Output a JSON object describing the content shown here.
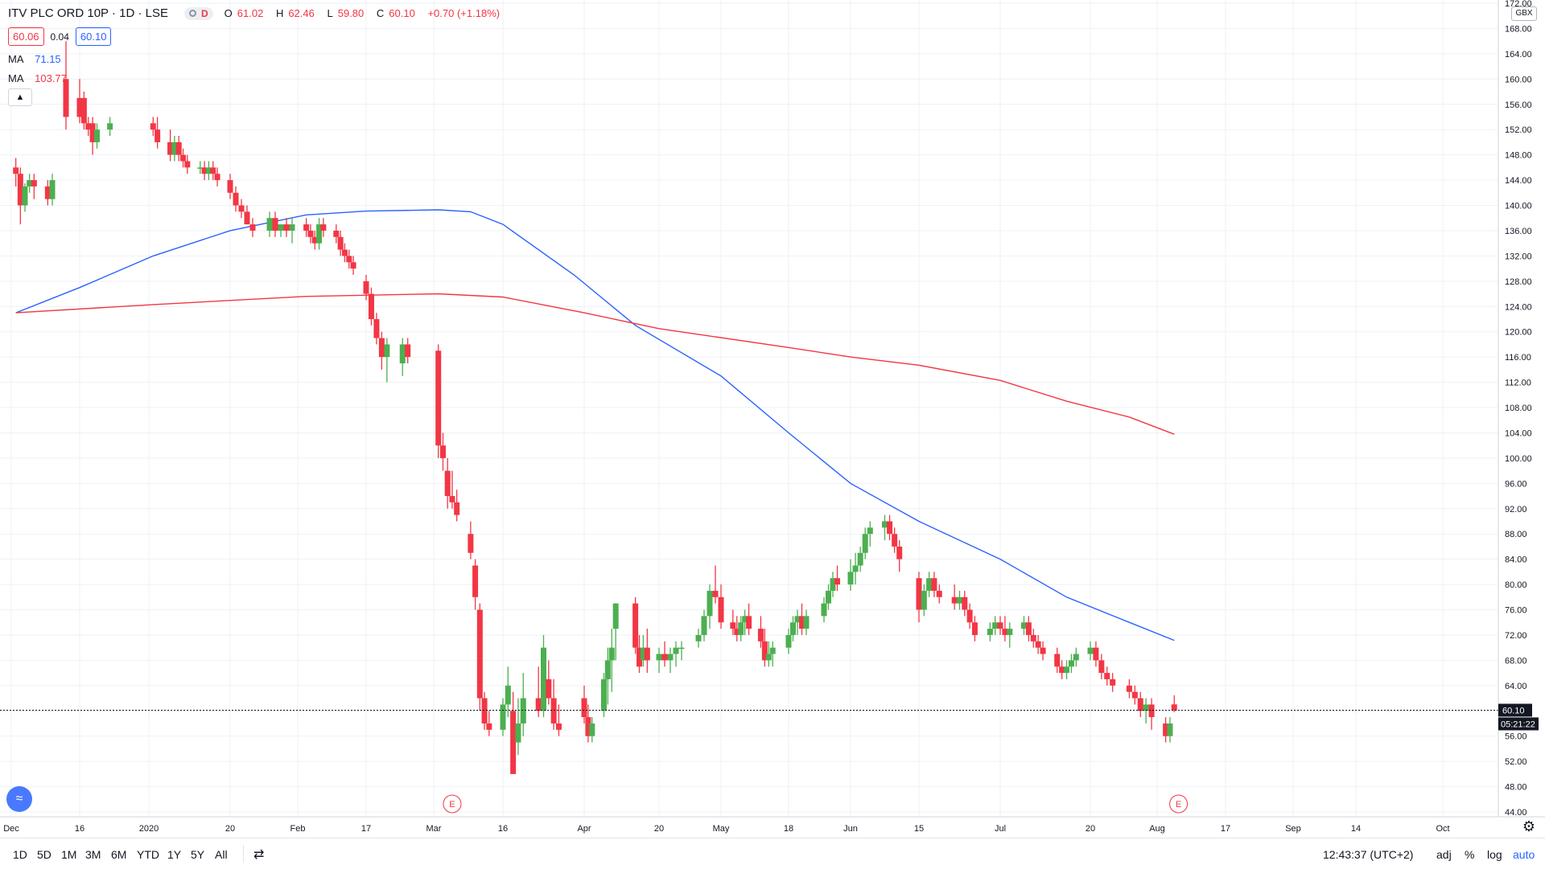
{
  "header": {
    "symbol": "ITV PLC ORD 10P · 1D · LSE",
    "badge": "D",
    "open_label": "O",
    "open": "61.02",
    "high_label": "H",
    "high": "62.46",
    "low_label": "L",
    "low": "59.80",
    "close_label": "C",
    "close": "60.10",
    "change": "+0.70 (+1.18%)"
  },
  "quote": {
    "bid": "60.06",
    "spread": "0.04",
    "ask": "60.10"
  },
  "indicators": [
    {
      "label": "MA",
      "value": "71.15",
      "color": "#2962ff"
    },
    {
      "label": "MA",
      "value": "103.77",
      "color": "#f23645"
    }
  ],
  "collapse_icon": "chevron-up-icon",
  "earnings_marker": "E",
  "currency": "GBX",
  "price_axis_ticks": [
    "44.00",
    "48.00",
    "52.00",
    "56.00",
    "60.00",
    "64.00",
    "68.00",
    "72.00",
    "76.00",
    "80.00",
    "84.00",
    "88.00",
    "92.00",
    "96.00",
    "100.00",
    "104.00",
    "108.00",
    "112.00",
    "116.00",
    "120.00",
    "124.00",
    "128.00",
    "132.00",
    "136.00",
    "140.00",
    "144.00",
    "148.00",
    "152.00",
    "156.00",
    "160.00",
    "164.00",
    "168.00",
    "172.00"
  ],
  "last_price_label": "60.10",
  "countdown_label": "05:21:22",
  "time_axis_labels": [
    "Dec",
    "16",
    "2020",
    "20",
    "Feb",
    "17",
    "Mar",
    "16",
    "Apr",
    "20",
    "May",
    "18",
    "Jun",
    "15",
    "Jul",
    "20",
    "Aug",
    "17",
    "Sep",
    "14",
    "Oct"
  ],
  "bottom_bar": {
    "timeframes": [
      "1D",
      "5D",
      "1M",
      "3M",
      "6M",
      "YTD",
      "1Y",
      "5Y",
      "All"
    ],
    "clock": "12:43:37 (UTC+2)",
    "options": [
      "adj",
      "%",
      "log",
      "auto"
    ]
  },
  "colors": {
    "up": "#26a69a",
    "up_green": "#4caf50",
    "down": "#f23645",
    "ma_fast": "#2962ff",
    "ma_slow": "#f23645",
    "grid": "#eef1f5"
  },
  "chart_data": {
    "type": "candlestick",
    "title": "ITV PLC ORD 10P · 1D · LSE",
    "ylim": [
      44,
      172
    ],
    "y_unit": "GBX",
    "grid": true,
    "last_price": 60.1,
    "series": [
      {
        "name": "MA",
        "value": 71.15,
        "color": "#2962ff",
        "points": [
          [
            "Dec 2",
            123
          ],
          [
            "Dec 16",
            127
          ],
          [
            "Jan 2",
            132
          ],
          [
            "Jan 20",
            136
          ],
          [
            "Feb 3",
            138.5
          ],
          [
            "Feb 17",
            139.1
          ],
          [
            "Mar 2",
            139.3
          ],
          [
            "Mar 9",
            139
          ],
          [
            "Mar 16",
            137
          ],
          [
            "Mar 30",
            129
          ],
          [
            "Apr 14",
            121
          ],
          [
            "May 1",
            113
          ],
          [
            "May 18",
            104
          ],
          [
            "Jun 1",
            96
          ],
          [
            "Jun 15",
            90
          ],
          [
            "Jul 1",
            84
          ],
          [
            "Jul 15",
            78
          ],
          [
            "Jul 27",
            74
          ],
          [
            "Aug 5",
            71.15
          ]
        ]
      },
      {
        "name": "MA",
        "value": 103.77,
        "color": "#f23645",
        "points": [
          [
            "Dec 2",
            123
          ],
          [
            "Jan 2",
            124.3
          ],
          [
            "Feb 3",
            125.6
          ],
          [
            "Mar 2",
            126
          ],
          [
            "Mar 16",
            125.5
          ],
          [
            "Apr 1",
            123
          ],
          [
            "Apr 20",
            120.5
          ],
          [
            "May 18",
            117.5
          ],
          [
            "Jun 1",
            116
          ],
          [
            "Jun 15",
            114.7
          ],
          [
            "Jul 1",
            112.3
          ],
          [
            "Jul 15",
            109
          ],
          [
            "Jul 27",
            106.5
          ],
          [
            "Aug 5",
            103.77
          ]
        ]
      }
    ],
    "candles": [
      [
        "Dec 2",
        146,
        147.5,
        143,
        145
      ],
      [
        "Dec 3",
        145,
        146,
        137,
        140
      ],
      [
        "Dec 4",
        140,
        143.5,
        139,
        143
      ],
      [
        "Dec 5",
        143,
        145,
        142,
        144
      ],
      [
        "Dec 6",
        144,
        145,
        141,
        143
      ],
      [
        "Dec 9",
        143,
        144,
        140,
        141
      ],
      [
        "Dec 10",
        141,
        145,
        140,
        144
      ],
      [
        "Dec 13",
        160,
        166,
        152,
        154
      ],
      [
        "Dec 16",
        157,
        160,
        153,
        154
      ],
      [
        "Dec 17",
        157,
        158,
        152,
        153
      ],
      [
        "Dec 18",
        153,
        154,
        151,
        152
      ],
      [
        "Dec 19",
        153,
        154,
        148,
        150
      ],
      [
        "Dec 20",
        150,
        153,
        149,
        152
      ],
      [
        "Dec 23",
        152,
        154,
        151,
        153
      ],
      [
        "Jan 2",
        153,
        154,
        151,
        152
      ],
      [
        "Jan 3",
        152,
        154,
        149,
        150
      ],
      [
        "Jan 6",
        150,
        152,
        147,
        148
      ],
      [
        "Jan 7",
        148,
        151,
        147,
        150
      ],
      [
        "Jan 8",
        150,
        151,
        147,
        148
      ],
      [
        "Jan 9",
        148,
        149,
        146,
        147
      ],
      [
        "Jan 10",
        147,
        148,
        145,
        146
      ],
      [
        "Jan 13",
        146,
        147,
        145,
        146
      ],
      [
        "Jan 14",
        146,
        147,
        144,
        145
      ],
      [
        "Jan 15",
        145,
        147,
        144,
        146
      ],
      [
        "Jan 16",
        146,
        147,
        144,
        145
      ],
      [
        "Jan 17",
        145,
        146,
        143,
        144
      ],
      [
        "Jan 20",
        144,
        145,
        141,
        142
      ],
      [
        "Jan 21",
        142,
        143,
        139,
        140
      ],
      [
        "Jan 22",
        140,
        141,
        138,
        139
      ],
      [
        "Jan 23",
        139,
        140,
        137,
        137
      ],
      [
        "Jan 24",
        137,
        138,
        135,
        136
      ],
      [
        "Jan 27",
        136,
        139,
        135,
        138
      ],
      [
        "Jan 28",
        138,
        139,
        135,
        136
      ],
      [
        "Jan 29",
        136,
        137,
        135,
        137
      ],
      [
        "Jan 30",
        137,
        138,
        135,
        136
      ],
      [
        "Jan 31",
        136,
        138,
        134,
        137
      ],
      [
        "Feb 3",
        137,
        138,
        135,
        136
      ],
      [
        "Feb 4",
        136,
        137,
        134,
        135
      ],
      [
        "Feb 5",
        135,
        136,
        133,
        134
      ],
      [
        "Feb 6",
        134,
        138,
        133,
        137
      ],
      [
        "Feb 7",
        137,
        138,
        135,
        136
      ],
      [
        "Feb 10",
        136,
        137,
        134,
        135
      ],
      [
        "Feb 11",
        135,
        136,
        132,
        133
      ],
      [
        "Feb 12",
        133,
        134,
        131,
        132
      ],
      [
        "Feb 13",
        132,
        133,
        130,
        131
      ],
      [
        "Feb 14",
        131,
        132,
        129,
        130
      ],
      [
        "Feb 17",
        128,
        129,
        125,
        126
      ],
      [
        "Feb 18",
        126,
        127,
        121,
        122
      ],
      [
        "Feb 19",
        122,
        123,
        118,
        119
      ],
      [
        "Feb 20",
        119,
        120,
        114,
        116
      ],
      [
        "Feb 21",
        116,
        119,
        112,
        118
      ],
      [
        "Feb 24",
        115,
        119,
        113,
        118
      ],
      [
        "Feb 25",
        118,
        119,
        115,
        116
      ],
      [
        "Mar 2",
        117,
        118,
        100,
        102
      ],
      [
        "Mar 3",
        102,
        104,
        98,
        100
      ],
      [
        "Mar 4",
        98,
        100,
        92,
        94
      ],
      [
        "Mar 5",
        94,
        98,
        92,
        93
      ],
      [
        "Mar 6",
        93,
        95,
        90,
        91
      ],
      [
        "Mar 9",
        88,
        90,
        84,
        85
      ],
      [
        "Mar 10",
        83,
        84,
        76,
        78
      ],
      [
        "Mar 11",
        76,
        77,
        60,
        62
      ],
      [
        "Mar 12",
        62,
        63,
        57,
        58
      ],
      [
        "Mar 13",
        58,
        60,
        56,
        57
      ],
      [
        "Mar 16",
        57,
        62,
        56,
        61
      ],
      [
        "Mar 17",
        61,
        67,
        59,
        64
      ],
      [
        "Mar 18",
        60,
        63,
        50,
        50
      ],
      [
        "Mar 19",
        55,
        62,
        53,
        58
      ],
      [
        "Mar 20",
        58,
        66,
        56,
        62
      ],
      [
        "Mar 23",
        62,
        67,
        59,
        60
      ],
      [
        "Mar 24",
        60,
        72,
        59,
        70
      ],
      [
        "Mar 25",
        65,
        68,
        61,
        62
      ],
      [
        "Mar 26",
        62,
        65,
        57,
        58
      ],
      [
        "Mar 27",
        58,
        61,
        56,
        57
      ],
      [
        "Apr 1",
        62,
        64,
        58,
        59
      ],
      [
        "Apr 2",
        59,
        61,
        55,
        56
      ],
      [
        "Apr 3",
        56,
        59,
        55,
        58
      ],
      [
        "Apr 6",
        60,
        66,
        59,
        65
      ],
      [
        "Apr 7",
        65,
        70,
        61,
        68
      ],
      [
        "Apr 8",
        68,
        73,
        63,
        70
      ],
      [
        "Apr 9",
        73,
        77,
        68,
        77
      ],
      [
        "Apr 14",
        77,
        78,
        69,
        70
      ],
      [
        "Apr 15",
        70,
        72,
        66,
        67
      ],
      [
        "Apr 16",
        68,
        72,
        67,
        70
      ],
      [
        "Apr 17",
        70,
        73,
        66,
        68
      ],
      [
        "Apr 20",
        68,
        70,
        66,
        69
      ],
      [
        "Apr 21",
        69,
        71,
        67,
        68
      ],
      [
        "Apr 22",
        68,
        70,
        66,
        69
      ],
      [
        "Apr 23",
        69,
        71,
        67,
        70
      ],
      [
        "Apr 24",
        70,
        71,
        68,
        70
      ],
      [
        "Apr 27",
        71,
        73,
        70,
        72
      ],
      [
        "Apr 28",
        72,
        76,
        71,
        75
      ],
      [
        "Apr 29",
        75,
        80,
        73,
        79
      ],
      [
        "Apr 30",
        79,
        83,
        77,
        78
      ],
      [
        "May 1",
        78,
        80,
        73,
        74
      ],
      [
        "May 4",
        74,
        76,
        72,
        73
      ],
      [
        "May 5",
        73,
        75,
        71,
        72
      ],
      [
        "May 6",
        72,
        75,
        71,
        74
      ],
      [
        "May 7",
        74,
        76,
        72,
        75
      ],
      [
        "May 8",
        75,
        77,
        72,
        73
      ],
      [
        "May 11",
        73,
        75,
        70,
        71
      ],
      [
        "May 12",
        71,
        73,
        67,
        68
      ],
      [
        "May 13",
        68,
        71,
        67,
        69
      ],
      [
        "May 14",
        69,
        71,
        67,
        70
      ],
      [
        "May 18",
        70,
        73,
        69,
        72
      ],
      [
        "May 19",
        72,
        75,
        71,
        74
      ],
      [
        "May 20",
        74,
        76,
        72,
        75
      ],
      [
        "May 21",
        75,
        77,
        72,
        73
      ],
      [
        "May 22",
        73,
        76,
        72,
        75
      ],
      [
        "May 26",
        75,
        78,
        74,
        77
      ],
      [
        "May 27",
        77,
        80,
        76,
        79
      ],
      [
        "May 28",
        79,
        82,
        78,
        81
      ],
      [
        "May 29",
        81,
        83,
        79,
        80
      ],
      [
        "Jun 1",
        80,
        84,
        79,
        82
      ],
      [
        "Jun 2",
        82,
        85,
        80,
        83
      ],
      [
        "Jun 3",
        83,
        86,
        82,
        85
      ],
      [
        "Jun 4",
        85,
        89,
        84,
        88
      ],
      [
        "Jun 5",
        88,
        90,
        86,
        89
      ],
      [
        "Jun 8",
        89,
        91,
        87,
        90
      ],
      [
        "Jun 9",
        90,
        91,
        87,
        88
      ],
      [
        "Jun 10",
        88,
        89,
        85,
        86
      ],
      [
        "Jun 11",
        86,
        87,
        82,
        84
      ],
      [
        "Jun 15",
        81,
        82,
        74,
        76
      ],
      [
        "Jun 16",
        76,
        80,
        75,
        79
      ],
      [
        "Jun 17",
        79,
        82,
        78,
        81
      ],
      [
        "Jun 18",
        81,
        82,
        78,
        79
      ],
      [
        "Jun 19",
        79,
        80,
        77,
        78
      ],
      [
        "Jun 22",
        78,
        80,
        76,
        77
      ],
      [
        "Jun 23",
        77,
        79,
        76,
        78
      ],
      [
        "Jun 24",
        78,
        79,
        75,
        76
      ],
      [
        "Jun 25",
        76,
        77,
        73,
        74
      ],
      [
        "Jun 26",
        74,
        75,
        71,
        72
      ],
      [
        "Jun 29",
        72,
        74,
        71,
        73
      ],
      [
        "Jun 30",
        73,
        75,
        72,
        74
      ],
      [
        "Jul 1",
        74,
        75,
        72,
        73
      ],
      [
        "Jul 2",
        73,
        75,
        71,
        72
      ],
      [
        "Jul 3",
        72,
        74,
        70,
        73
      ],
      [
        "Jul 6",
        73,
        75,
        72,
        74
      ],
      [
        "Jul 7",
        74,
        75,
        71,
        72
      ],
      [
        "Jul 8",
        72,
        73,
        70,
        71
      ],
      [
        "Jul 9",
        71,
        72,
        69,
        70
      ],
      [
        "Jul 10",
        70,
        71,
        68,
        69
      ],
      [
        "Jul 13",
        69,
        70,
        66,
        67
      ],
      [
        "Jul 14",
        67,
        68,
        65,
        66
      ],
      [
        "Jul 15",
        66,
        68,
        65,
        67
      ],
      [
        "Jul 16",
        67,
        69,
        66,
        68
      ],
      [
        "Jul 17",
        68,
        70,
        67,
        69
      ],
      [
        "Jul 20",
        69,
        71,
        68,
        70
      ],
      [
        "Jul 21",
        70,
        71,
        67,
        68
      ],
      [
        "Jul 22",
        68,
        69,
        65,
        66
      ],
      [
        "Jul 23",
        66,
        67,
        64,
        65
      ],
      [
        "Jul 24",
        65,
        66,
        63,
        64
      ],
      [
        "Jul 27",
        64,
        65,
        62,
        63
      ],
      [
        "Jul 28",
        63,
        64,
        61,
        62
      ],
      [
        "Jul 29",
        62,
        63,
        59,
        60
      ],
      [
        "Jul 30",
        60,
        62,
        58,
        61
      ],
      [
        "Jul 31",
        61,
        62,
        57,
        59
      ],
      [
        "Aug 3",
        58,
        59,
        55,
        56
      ],
      [
        "Aug 4",
        56,
        59,
        55,
        58
      ],
      [
        "Aug 5",
        61.02,
        62.46,
        59.8,
        60.1
      ]
    ]
  }
}
